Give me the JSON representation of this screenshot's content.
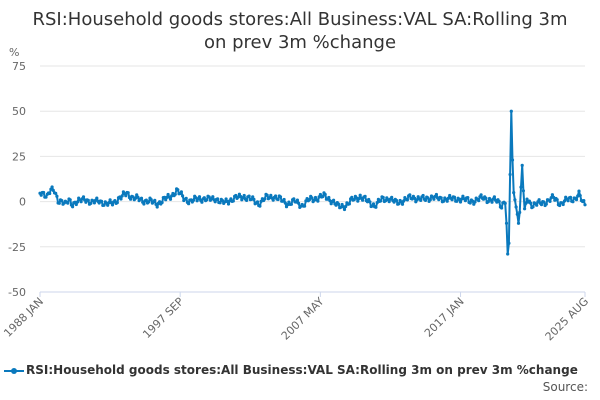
{
  "page": {
    "title_line1": "RSI:Household goods stores:All Business:VAL SA:Rolling 3m",
    "title_line2": "on prev 3m %change",
    "source_label": "Source:"
  },
  "colors": {
    "series": "#0a79bd",
    "grid": "#e6e6e6",
    "axis": "#ccd6eb",
    "text": "#666666"
  },
  "chart_data": {
    "type": "line",
    "title": "RSI:Household goods stores:All Business:VAL SA:Rolling 3m on prev 3m %change",
    "ylabel": "%",
    "ylim": [
      -50,
      75
    ],
    "yticks": [
      75,
      50,
      25,
      0,
      -25,
      -50
    ],
    "xticks": [
      "1988 JAN",
      "1997 SEP",
      "2007 MAY",
      "2017 JAN",
      "2025 AUG"
    ],
    "x_range": [
      "1988 JAN",
      "2025 AUG"
    ],
    "grid": true,
    "legend": "bottom",
    "series": [
      {
        "name": "RSI:Household goods stores:All Business:VAL SA:Rolling 3m on prev 3m %change",
        "anchors": [
          [
            "1988-01",
            5
          ],
          [
            "1988-04",
            5
          ],
          [
            "1988-07",
            3
          ],
          [
            "1988-10",
            6
          ],
          [
            "1989-01",
            6
          ],
          [
            "1989-04",
            1
          ],
          [
            "1989-07",
            0
          ],
          [
            "1989-10",
            -2
          ],
          [
            "1990-01",
            1
          ],
          [
            "1990-04",
            -1
          ],
          [
            "1990-10",
            0
          ],
          [
            "1991-02",
            2
          ],
          [
            "1991-08",
            -1
          ],
          [
            "1992-02",
            1
          ],
          [
            "1992-08",
            -2
          ],
          [
            "1993-02",
            0
          ],
          [
            "1993-08",
            2
          ],
          [
            "1994-01",
            5
          ],
          [
            "1994-06",
            2
          ],
          [
            "1995-01",
            1
          ],
          [
            "1995-08",
            0
          ],
          [
            "1996-02",
            -1
          ],
          [
            "1996-08",
            1
          ],
          [
            "1997-01",
            3
          ],
          [
            "1997-06",
            6
          ],
          [
            "1997-12",
            2
          ],
          [
            "1998-06",
            0
          ],
          [
            "1999-01",
            2
          ],
          [
            "1999-08",
            1
          ],
          [
            "2000-02",
            2
          ],
          [
            "2000-08",
            -1
          ],
          [
            "2001-02",
            1
          ],
          [
            "2001-08",
            2
          ],
          [
            "2002-02",
            3
          ],
          [
            "2002-08",
            1
          ],
          [
            "2003-02",
            -1
          ],
          [
            "2003-08",
            2
          ],
          [
            "2004-02",
            3
          ],
          [
            "2004-08",
            1
          ],
          [
            "2005-02",
            -1
          ],
          [
            "2005-08",
            0
          ],
          [
            "2006-02",
            -2
          ],
          [
            "2006-08",
            1
          ],
          [
            "2007-02",
            2
          ],
          [
            "2007-08",
            3
          ],
          [
            "2008-02",
            1
          ],
          [
            "2008-08",
            -3
          ],
          [
            "2009-02",
            -2
          ],
          [
            "2009-08",
            1
          ],
          [
            "2010-02",
            3
          ],
          [
            "2010-08",
            0
          ],
          [
            "2011-02",
            -2
          ],
          [
            "2011-08",
            1
          ],
          [
            "2012-02",
            2
          ],
          [
            "2012-08",
            -1
          ],
          [
            "2013-02",
            1
          ],
          [
            "2013-08",
            2
          ],
          [
            "2014-02",
            2
          ],
          [
            "2014-08",
            1
          ],
          [
            "2015-02",
            3
          ],
          [
            "2015-08",
            1
          ],
          [
            "2016-02",
            2
          ],
          [
            "2016-08",
            1
          ],
          [
            "2017-02",
            2
          ],
          [
            "2017-08",
            0
          ],
          [
            "2018-02",
            1
          ],
          [
            "2018-08",
            2
          ],
          [
            "2019-02",
            1
          ],
          [
            "2019-08",
            0
          ],
          [
            "2019-11",
            -2
          ],
          [
            "2020-01",
            0
          ],
          [
            "2020-02",
            -1
          ],
          [
            "2020-03",
            -12
          ],
          [
            "2020-04",
            -29
          ],
          [
            "2020-05",
            -23
          ],
          [
            "2020-06",
            15
          ],
          [
            "2020-07",
            50
          ],
          [
            "2020-08",
            23
          ],
          [
            "2020-09",
            5
          ],
          [
            "2020-10",
            1
          ],
          [
            "2020-11",
            -3
          ],
          [
            "2020-12",
            -7
          ],
          [
            "2021-01",
            -12
          ],
          [
            "2021-02",
            -6
          ],
          [
            "2021-03",
            8
          ],
          [
            "2021-04",
            20
          ],
          [
            "2021-05",
            6
          ],
          [
            "2021-06",
            -4
          ],
          [
            "2021-08",
            2
          ],
          [
            "2021-10",
            0
          ],
          [
            "2022-01",
            -2
          ],
          [
            "2022-06",
            -1
          ],
          [
            "2022-12",
            0
          ],
          [
            "2023-06",
            2
          ],
          [
            "2023-12",
            -1
          ],
          [
            "2024-06",
            1
          ],
          [
            "2024-12",
            2
          ],
          [
            "2025-03",
            4
          ],
          [
            "2025-05",
            1
          ],
          [
            "2025-06",
            -1
          ],
          [
            "2025-08",
            -1
          ]
        ]
      }
    ]
  }
}
